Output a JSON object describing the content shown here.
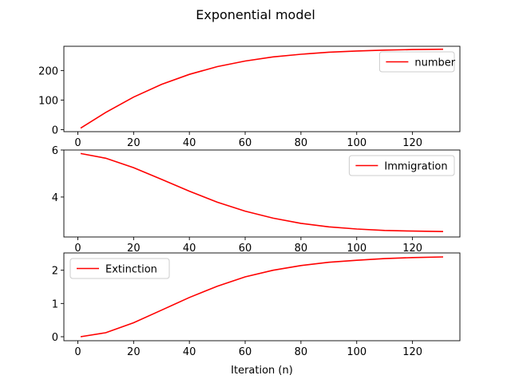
{
  "title": "Exponential model",
  "chart_data": [
    {
      "type": "line",
      "xlim": [
        -5,
        137
      ],
      "ylim": [
        -7,
        282
      ],
      "xticks": [
        0,
        20,
        40,
        60,
        80,
        100,
        120
      ],
      "yticks": [
        0,
        100,
        200
      ],
      "legend_placement": "upper-right",
      "xlabel": "",
      "series": [
        {
          "name": "number",
          "color": "#ff0000",
          "x": [
            1,
            10,
            20,
            30,
            40,
            50,
            60,
            70,
            80,
            90,
            100,
            110,
            120,
            131
          ],
          "y": [
            5,
            58,
            110,
            153,
            187,
            213,
            232,
            246,
            255,
            262,
            266,
            269,
            271,
            272
          ]
        }
      ]
    },
    {
      "type": "line",
      "xlim": [
        -5,
        137
      ],
      "ylim": [
        2.3,
        6.0
      ],
      "xticks": [
        0,
        20,
        40,
        60,
        80,
        100,
        120
      ],
      "yticks": [
        4,
        6
      ],
      "legend_placement": "upper-right",
      "xlabel": "",
      "series": [
        {
          "name": "Immigration",
          "color": "#ff0000",
          "x": [
            1,
            10,
            20,
            30,
            40,
            50,
            60,
            70,
            80,
            90,
            100,
            110,
            120,
            131
          ],
          "y": [
            5.85,
            5.65,
            5.25,
            4.75,
            4.25,
            3.78,
            3.4,
            3.1,
            2.88,
            2.73,
            2.64,
            2.58,
            2.55,
            2.53
          ]
        }
      ]
    },
    {
      "type": "line",
      "xlim": [
        -5,
        137
      ],
      "ylim": [
        -0.12,
        2.52
      ],
      "xticks": [
        0,
        20,
        40,
        60,
        80,
        100,
        120
      ],
      "yticks": [
        0,
        1,
        2
      ],
      "legend_placement": "upper-left",
      "xlabel": "Iteration (n)",
      "series": [
        {
          "name": "Extinction",
          "color": "#ff0000",
          "x": [
            1,
            10,
            20,
            30,
            40,
            50,
            60,
            70,
            80,
            90,
            100,
            110,
            120,
            131
          ],
          "y": [
            0.0,
            0.12,
            0.42,
            0.8,
            1.18,
            1.52,
            1.8,
            2.0,
            2.14,
            2.24,
            2.3,
            2.35,
            2.38,
            2.4
          ]
        }
      ]
    }
  ]
}
